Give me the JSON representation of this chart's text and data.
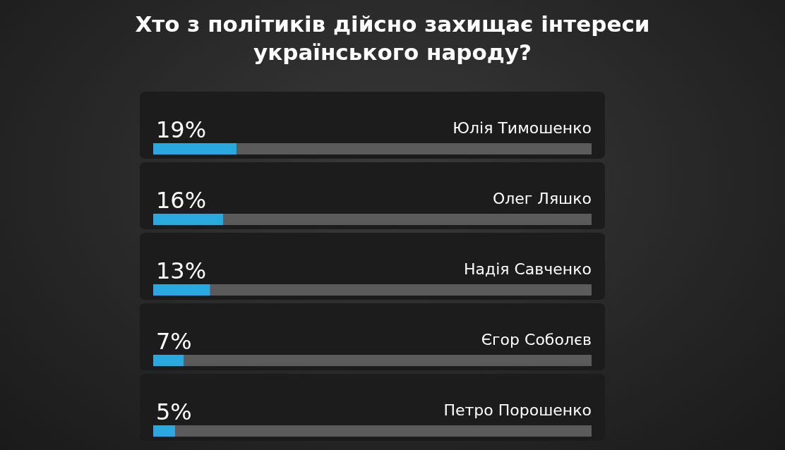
{
  "chart_data": {
    "type": "bar",
    "orientation": "horizontal",
    "stacked": true,
    "title": "Хто з політиків дійсно захищає інтереси українського народу?",
    "categories": [
      "Юлія Тимошенко",
      "Олег Ляшко",
      "Надія Савченко",
      "Єгор Соболєв",
      "Петро Порошенко"
    ],
    "series": [
      {
        "color": "#2aa8e0",
        "values": [
          19,
          16,
          13,
          7,
          5
        ],
        "value_labels": [
          "19%",
          "16%",
          "13%",
          "7%",
          "5%"
        ]
      },
      {
        "color": "#5b5b5b",
        "values": [
          81,
          84,
          87,
          93,
          95
        ]
      }
    ],
    "xlim": [
      0,
      100
    ],
    "tick_labels": false,
    "grid": false,
    "legend": false
  }
}
